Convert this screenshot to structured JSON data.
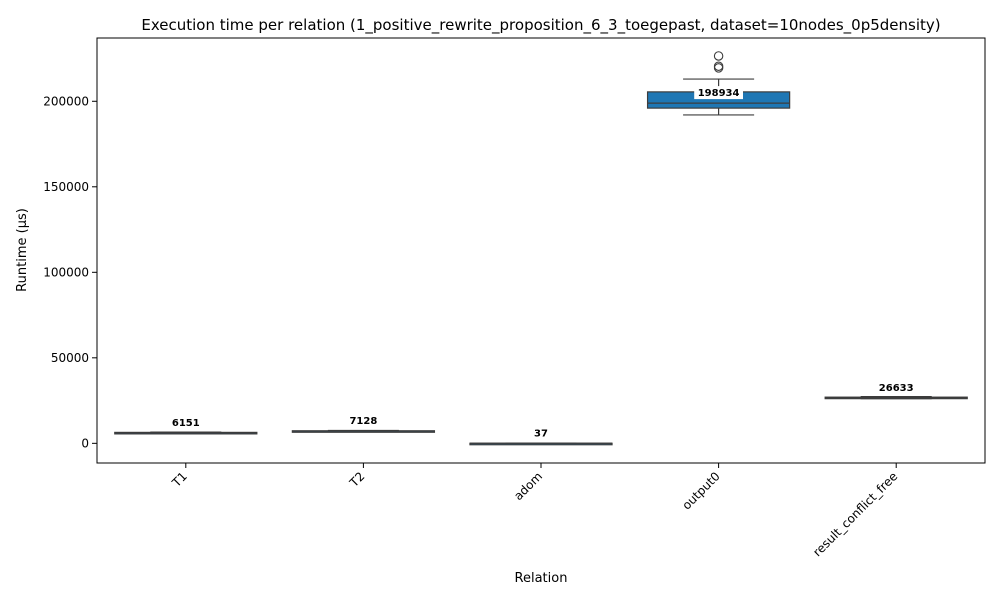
{
  "chart_data": {
    "type": "box",
    "title": "Execution time per relation (1_positive_rewrite_proposition_6_3_toegepast, dataset=10nodes_0p5density)",
    "xlabel": "Relation",
    "ylabel": "Runtime (µs)",
    "ylim": [
      -11500,
      237000
    ],
    "yticks": [
      0,
      50000,
      100000,
      150000,
      200000
    ],
    "ytick_labels": [
      "0",
      "50000",
      "100000",
      "150000",
      "200000"
    ],
    "categories": [
      "T1",
      "T2",
      "adom",
      "output0",
      "result_conflict_free"
    ],
    "fill_color": "#1f77b4",
    "edge_color": "#3d3d3d",
    "boxes": [
      {
        "category": "T1",
        "q1": 5900,
        "median": 6151,
        "q3": 6400,
        "whisker_low": 5700,
        "whisker_high": 6600,
        "outliers": [],
        "median_label": "6151"
      },
      {
        "category": "T2",
        "q1": 6900,
        "median": 7128,
        "q3": 7350,
        "whisker_low": 6700,
        "whisker_high": 7550,
        "outliers": [],
        "median_label": "7128"
      },
      {
        "category": "adom",
        "q1": 20,
        "median": 37,
        "q3": 55,
        "whisker_low": 10,
        "whisker_high": 70,
        "outliers": [],
        "median_label": "37"
      },
      {
        "category": "output0",
        "q1": 196000,
        "median": 198934,
        "q3": 205500,
        "whisker_low": 192000,
        "whisker_high": 213000,
        "outliers": [
          219500,
          220500,
          226500
        ],
        "median_label": "198934"
      },
      {
        "category": "result_conflict_free",
        "q1": 26300,
        "median": 26633,
        "q3": 27000,
        "whisker_low": 26100,
        "whisker_high": 27300,
        "outliers": [],
        "median_label": "26633"
      }
    ]
  }
}
